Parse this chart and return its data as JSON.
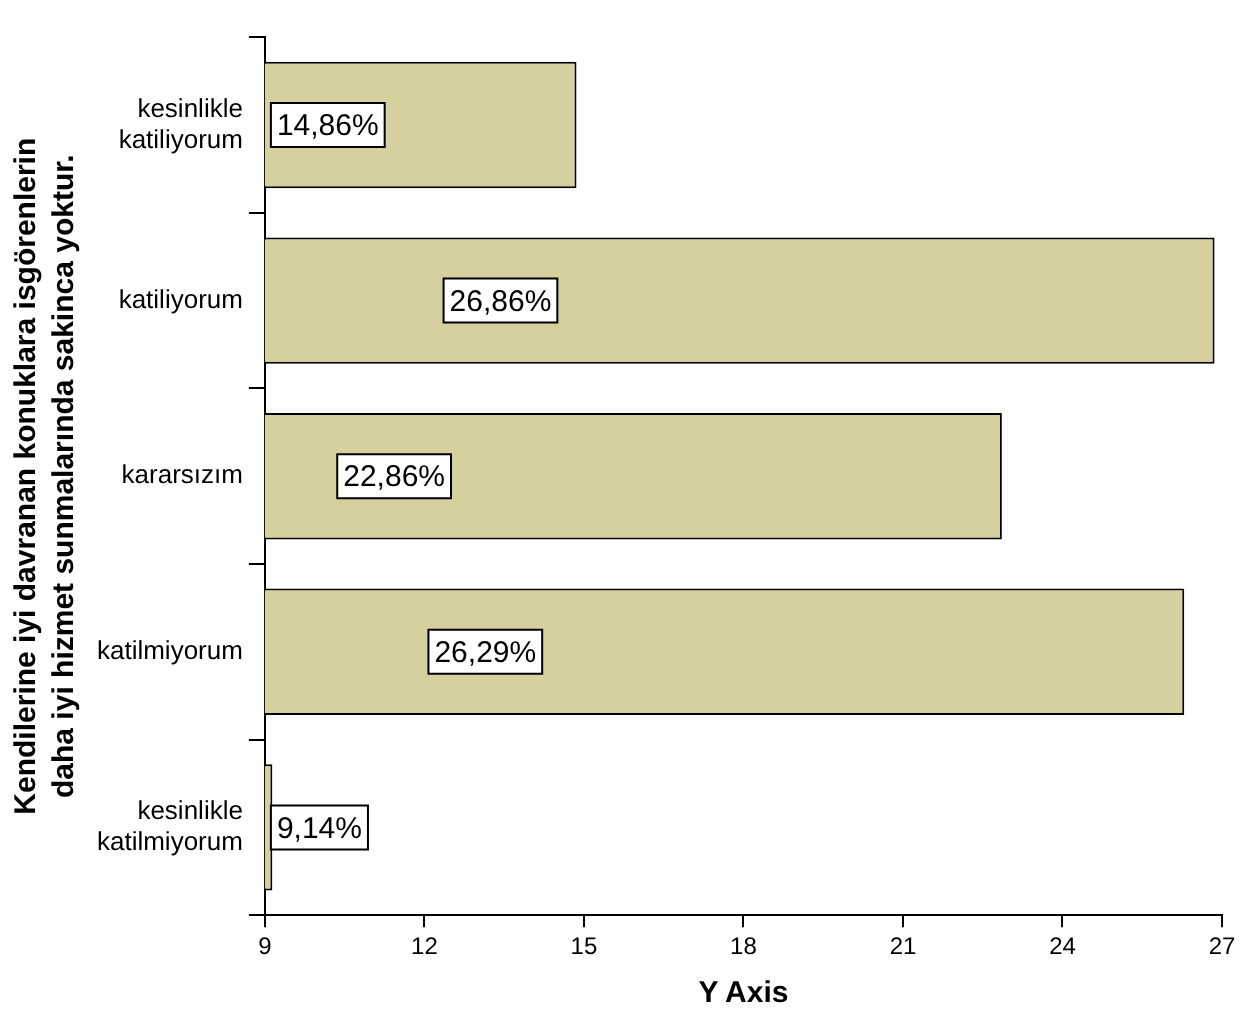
{
  "chart_data": {
    "type": "bar",
    "orientation": "horizontal",
    "xlabel": "Y Axis",
    "ylabel": "Kendilerine iyi davranan konuklara isgörenlerin\ndaha iyi hizmet sunmalarında sakinca yoktur.",
    "categories": [
      "kesinlikle katiliyorum",
      "katiliyorum",
      "kararsızım",
      "katilmiyorum",
      "kesinlikle katilmiyorum"
    ],
    "values": [
      14.86,
      26.86,
      22.86,
      26.29,
      9.14
    ],
    "value_labels": [
      "14,86%",
      "26,86%",
      "22,86%",
      "26,29%",
      "9,14%"
    ],
    "color": "#d6cf9e",
    "xlim": [
      9,
      27
    ],
    "xticks": [
      9,
      12,
      15,
      18,
      21,
      24,
      27
    ],
    "grid": false,
    "legend": false
  }
}
